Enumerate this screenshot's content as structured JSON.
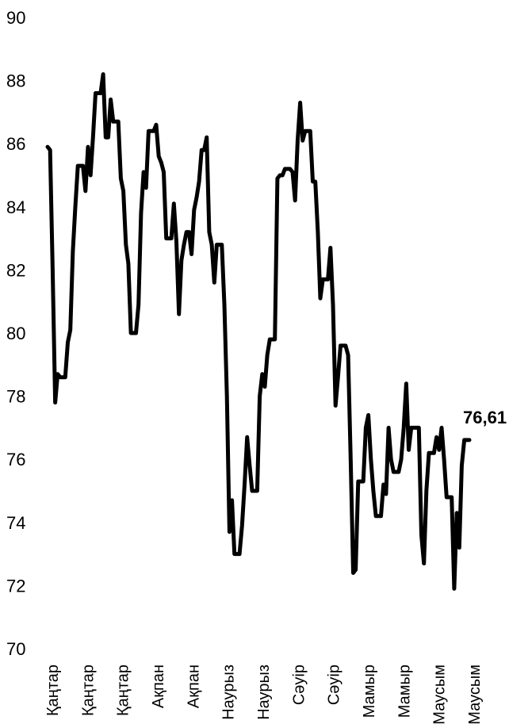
{
  "chart_data": {
    "type": "line",
    "title": "",
    "xlabel": "",
    "ylabel": "",
    "ylim": [
      70,
      90
    ],
    "yticks": [
      "70",
      "72",
      "74",
      "76",
      "78",
      "80",
      "82",
      "84",
      "86",
      "88",
      "90"
    ],
    "xticks": [
      "Қаңтар",
      "Қаңтар",
      "Қаңтар",
      "Ақпан",
      "Ақпан",
      "Наурыз",
      "Наурыз",
      "Сәуір",
      "Сәуір",
      "Мамыр",
      "Мамыр",
      "Маусым",
      "Маусым"
    ],
    "grid": false,
    "line_color": "#000000",
    "end_label": "76,61",
    "series": [
      {
        "values": [
          85.9,
          85.8,
          82.0,
          77.8,
          78.7,
          78.6,
          78.6,
          78.6,
          79.7,
          80.1,
          82.6,
          84.0,
          85.3,
          85.3,
          85.3,
          84.5,
          85.9,
          85.0,
          86.2,
          87.6,
          87.6,
          87.6,
          88.2,
          86.2,
          86.2,
          87.4,
          86.7,
          86.7,
          86.7,
          84.9,
          84.5,
          82.8,
          82.2,
          80.0,
          80.0,
          80.0,
          80.9,
          83.8,
          85.1,
          84.6,
          86.4,
          86.4,
          86.4,
          86.6,
          85.6,
          85.4,
          85.1,
          83.0,
          83.0,
          83.0,
          84.1,
          82.9,
          80.6,
          82.3,
          82.8,
          83.2,
          83.2,
          82.5,
          83.9,
          84.3,
          84.8,
          85.8,
          85.8,
          86.2,
          83.2,
          82.8,
          81.6,
          82.8,
          82.8,
          82.8,
          80.9,
          78.0,
          73.7,
          74.7,
          73.0,
          73.0,
          73.0,
          73.9,
          75.2,
          76.7,
          75.8,
          75.0,
          75.0,
          75.0,
          78.0,
          78.7,
          78.3,
          79.3,
          79.8,
          79.8,
          79.8,
          84.9,
          85.0,
          85.0,
          85.2,
          85.2,
          85.2,
          85.1,
          84.2,
          86.1,
          87.3,
          86.1,
          86.4,
          86.4,
          86.4,
          84.8,
          84.8,
          83.2,
          81.1,
          81.7,
          81.7,
          81.7,
          82.7,
          80.9,
          77.7,
          78.6,
          79.6,
          79.6,
          79.6,
          79.3,
          76.0,
          72.4,
          72.5,
          75.3,
          75.3,
          75.3,
          77.0,
          77.4,
          76.0,
          75.0,
          74.2,
          74.2,
          74.2,
          75.2,
          74.9,
          77.0,
          76.0,
          75.6,
          75.6,
          75.6,
          76.0,
          77.0,
          78.4,
          76.3,
          77.0,
          77.0,
          77.0,
          77.0,
          73.6,
          72.7,
          75.0,
          76.2,
          76.2,
          76.2,
          76.7,
          76.3,
          77.0,
          76.0,
          74.8,
          74.8,
          74.8,
          71.9,
          74.3,
          73.2,
          75.8,
          76.61,
          76.61,
          76.61
        ]
      }
    ]
  }
}
